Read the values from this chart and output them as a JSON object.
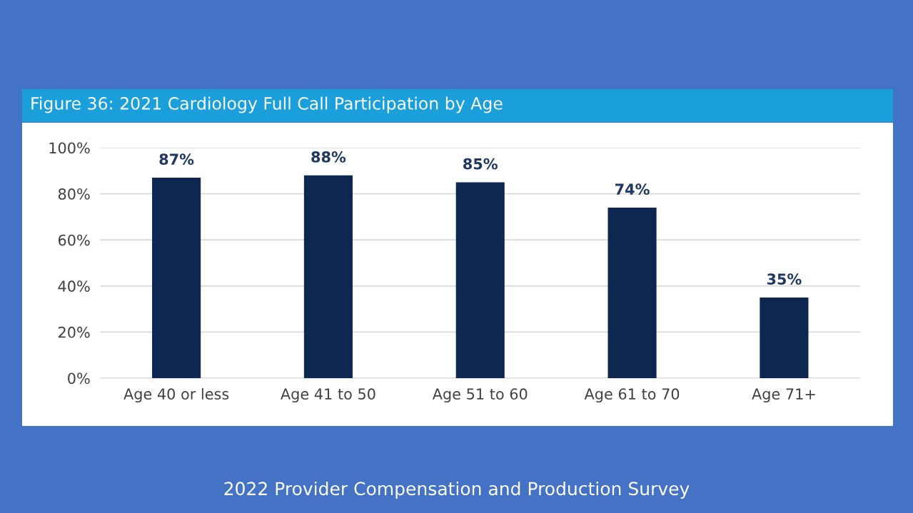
{
  "chart_data": {
    "type": "bar",
    "title": "Figure 36: 2021 Cardiology Full Call Participation by Age",
    "categories": [
      "Age 40 or less",
      "Age 41 to 50",
      "Age 51 to 60",
      "Age 61 to 70",
      "Age 71+"
    ],
    "values": [
      87,
      88,
      85,
      74,
      35
    ],
    "value_labels": [
      "87%",
      "88%",
      "85%",
      "74%",
      "35%"
    ],
    "color": "#0d2750",
    "ylim": [
      0,
      100
    ],
    "yticks": [
      {
        "value": 0,
        "label": "0%"
      },
      {
        "value": 20,
        "label": "20%"
      },
      {
        "value": 40,
        "label": "40%"
      },
      {
        "value": 60,
        "label": "60%"
      },
      {
        "value": 80,
        "label": "80%"
      },
      {
        "value": 100,
        "label": "100%"
      }
    ],
    "grid": "y",
    "legend": false,
    "annotations": [
      "2022 Provider Compensation and Production Survey"
    ]
  }
}
